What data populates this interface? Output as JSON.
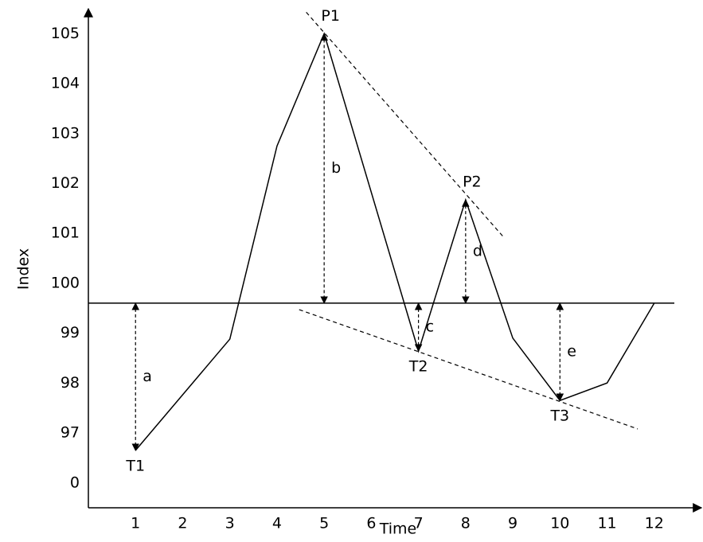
{
  "chart_data": {
    "type": "line",
    "x_label": "Time",
    "y_label": "Index",
    "x": [
      1,
      3,
      4,
      5,
      7,
      8,
      9,
      10,
      11,
      12
    ],
    "values": [
      96.65,
      98.88,
      102.75,
      105,
      98.64,
      101.67,
      98.9,
      97.65,
      98.0,
      99.6
    ],
    "point_labels": [
      "T1",
      null,
      null,
      "P1",
      "T2",
      "P2",
      null,
      "T3",
      null,
      null
    ],
    "color": "#000000",
    "xlim": [
      0,
      13
    ],
    "xticks": [
      1,
      2,
      3,
      4,
      5,
      6,
      7,
      8,
      9,
      10,
      11,
      12
    ],
    "ylim": [
      95.5,
      105.5
    ],
    "yticks": [
      97,
      98,
      99,
      100,
      101,
      102,
      103,
      104,
      105
    ],
    "y_break_label": "0",
    "reference_line": 99.6,
    "trend_lines": [
      {
        "x": [
          4.62,
          8.79
        ],
        "y": [
          105.43,
          100.94
        ]
      },
      {
        "x": [
          4.47,
          11.65
        ],
        "y": [
          99.47,
          97.08
        ]
      }
    ],
    "arrows": [
      {
        "label": "a",
        "x": 1,
        "y": [
          99.6,
          96.65
        ]
      },
      {
        "label": "b",
        "x": 5,
        "y": [
          105,
          99.6
        ]
      },
      {
        "label": "c",
        "x": 7,
        "y": [
          99.6,
          98.64
        ]
      },
      {
        "label": "d",
        "x": 8,
        "y": [
          101.67,
          99.6
        ]
      },
      {
        "label": "e",
        "x": 10,
        "y": [
          99.6,
          97.65
        ]
      }
    ]
  }
}
